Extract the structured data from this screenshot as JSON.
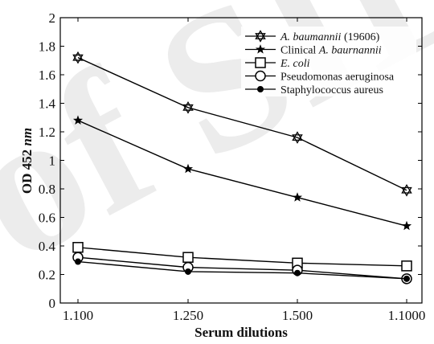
{
  "chart_data": {
    "type": "line",
    "title": "",
    "xlabel": "Serum dilutions",
    "ylabel": {
      "main": "OD 452 ",
      "unit": "nm"
    },
    "categories": [
      "1.100",
      "1.250",
      "1.500",
      "1.1000"
    ],
    "ylim": [
      0,
      2
    ],
    "yticks": [
      "0",
      "0.2",
      "0.4",
      "0.6",
      "0.8",
      "1",
      "1.2",
      "1.4",
      "1.6",
      "1.8",
      "2"
    ],
    "grid": false,
    "legend_position": "top-right",
    "series": [
      {
        "name_italic": "A. baumannii",
        "name_rest": " (19606)",
        "marker": "hexagram",
        "values": [
          1.72,
          1.37,
          1.16,
          0.79
        ]
      },
      {
        "name_plain": "Clinical ",
        "name_italic": "A. baurnannii",
        "marker": "star",
        "values": [
          1.28,
          0.94,
          0.74,
          0.54
        ]
      },
      {
        "name_italic": "E. coli",
        "marker": "square",
        "values": [
          0.39,
          0.32,
          0.28,
          0.26
        ]
      },
      {
        "name_plain": "Pseudomonas aeruginosa",
        "marker": "circle",
        "values": [
          0.32,
          0.25,
          0.23,
          0.17
        ]
      },
      {
        "name_plain": "Staphylococcus aureus",
        "marker": "dot",
        "values": [
          0.29,
          0.22,
          0.21,
          0.17
        ]
      }
    ]
  },
  "watermark": {
    "text": "of SID"
  }
}
